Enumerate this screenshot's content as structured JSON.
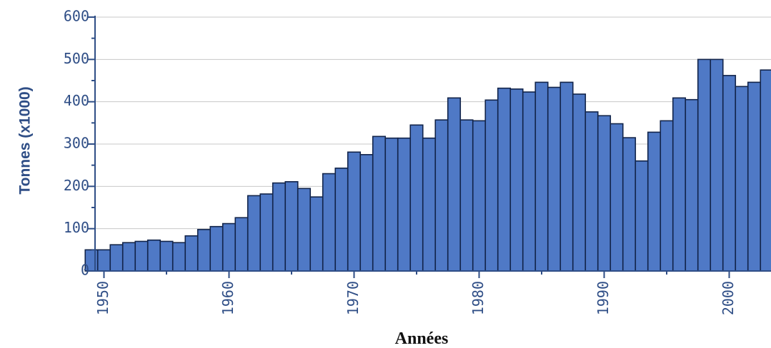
{
  "chart_data": {
    "type": "bar",
    "title": "",
    "xlabel": "Années",
    "ylabel": "Tonnes (x1000)",
    "ylim": [
      0,
      600
    ],
    "yticks": [
      0,
      100,
      200,
      300,
      400,
      500,
      600
    ],
    "xticks": [
      1950,
      1960,
      1970,
      1980,
      1990,
      2000
    ],
    "grid": true,
    "bar_color": "#4f79c6",
    "edge_color": "#12244a",
    "axis_color": "#2f4e86",
    "categories": [
      1949,
      1950,
      1951,
      1952,
      1953,
      1954,
      1955,
      1956,
      1957,
      1958,
      1959,
      1960,
      1961,
      1962,
      1963,
      1964,
      1965,
      1966,
      1967,
      1968,
      1969,
      1970,
      1971,
      1972,
      1973,
      1974,
      1975,
      1976,
      1977,
      1978,
      1979,
      1980,
      1981,
      1982,
      1983,
      1984,
      1985,
      1986,
      1987,
      1988,
      1989,
      1990,
      1991,
      1992,
      1993,
      1994,
      1995,
      1996,
      1997,
      1998,
      1999,
      2000,
      2001,
      2002,
      2003
    ],
    "values": [
      50,
      50,
      62,
      67,
      70,
      73,
      70,
      67,
      83,
      98,
      105,
      112,
      126,
      178,
      182,
      208,
      211,
      195,
      175,
      230,
      243,
      281,
      275,
      318,
      314,
      314,
      345,
      314,
      357,
      409,
      357,
      355,
      404,
      432,
      430,
      423,
      446,
      434,
      446,
      418,
      376,
      367,
      348,
      315,
      260,
      328,
      355,
      409,
      405,
      500,
      500,
      462,
      436,
      446,
      475
    ]
  }
}
